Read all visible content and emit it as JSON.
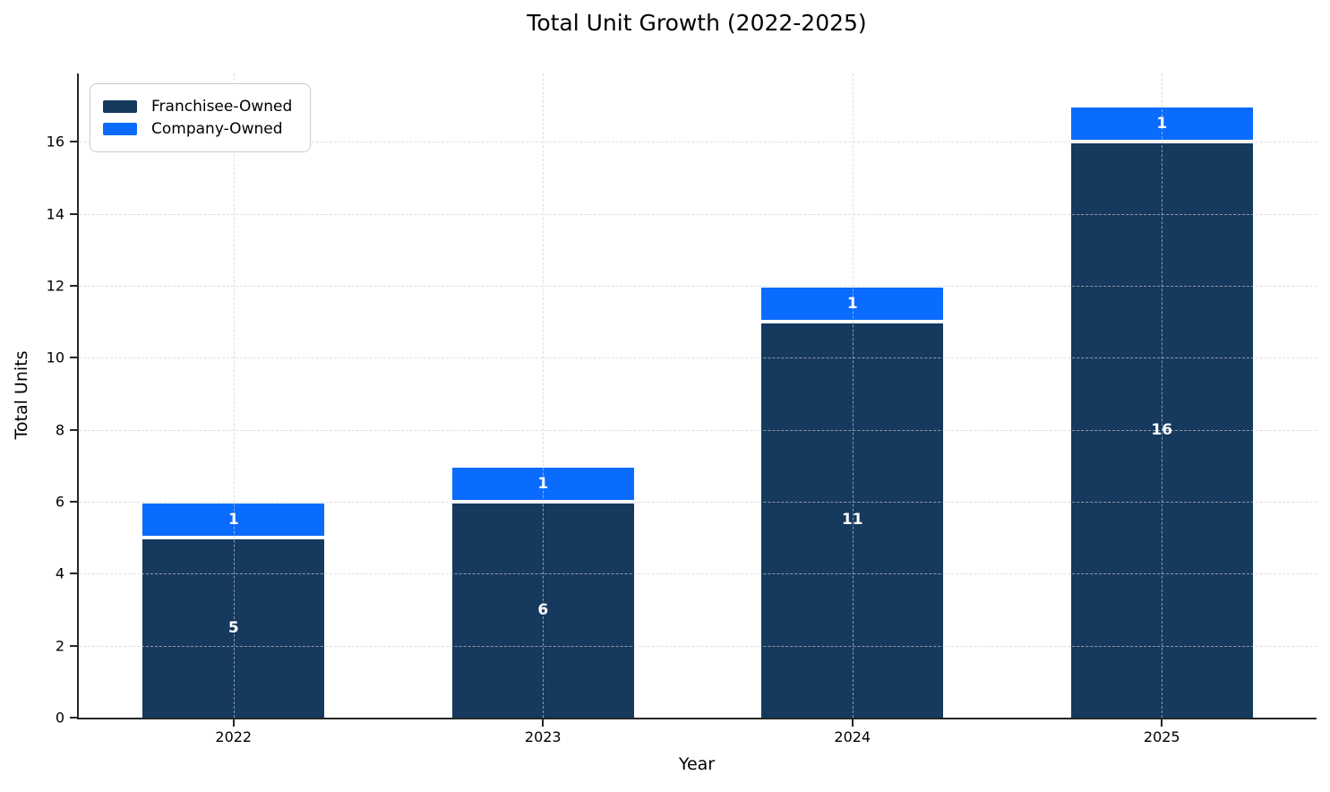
{
  "chart_data": {
    "type": "bar",
    "stacked": true,
    "title": "Total Unit Growth (2022-2025)",
    "xlabel": "Year",
    "ylabel": "Total Units",
    "categories": [
      "2022",
      "2023",
      "2024",
      "2025"
    ],
    "series": [
      {
        "name": "Franchisee-Owned",
        "color": "#16395e",
        "values": [
          5,
          6,
          11,
          16
        ]
      },
      {
        "name": "Company-Owned",
        "color": "#0a6bff",
        "values": [
          1,
          1,
          1,
          1
        ]
      }
    ],
    "totals": [
      6,
      7,
      12,
      17
    ],
    "ylim": [
      0,
      17.9
    ],
    "yticks": [
      0,
      2,
      4,
      6,
      8,
      10,
      12,
      14,
      16
    ],
    "grid": true,
    "grid_style": "dashed",
    "bar_value_labels": true,
    "legend_position": "upper-left"
  }
}
